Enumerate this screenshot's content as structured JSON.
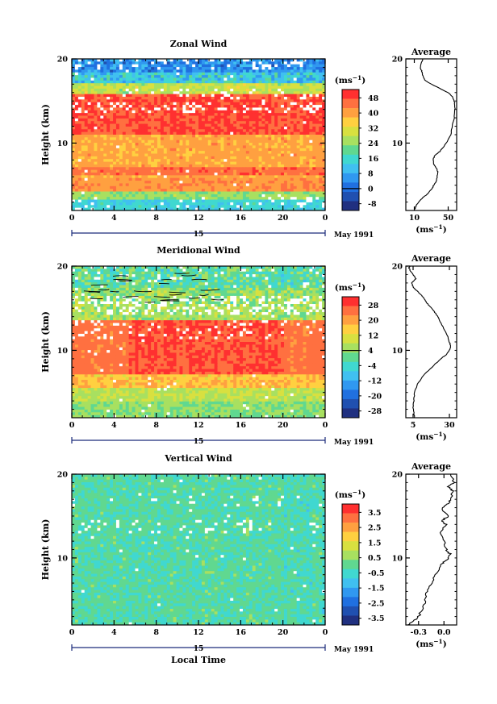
{
  "x_axis_label": "Local Time",
  "chart_data": [
    {
      "type": "heatmap",
      "title": "Zonal Wind",
      "ylabel": "Height (km)",
      "ylim": [
        2,
        20
      ],
      "y_ticks": [
        "10",
        "20"
      ],
      "x_ticks": [
        "0",
        "4",
        "8",
        "12",
        "16",
        "20",
        "0"
      ],
      "xlim": [
        0,
        24
      ],
      "day_label": "15",
      "date_label": "May 1991",
      "colorbar": {
        "unit_label": "(ms",
        "unit_exp": "−1",
        "tick_labels": [
          "48",
          "40",
          "32",
          "24",
          "16",
          "8",
          "0",
          "-8"
        ],
        "colors": [
          "#FF3030",
          "#FF7040",
          "#FFA040",
          "#FFD040",
          "#D8E040",
          "#A8E060",
          "#60D890",
          "#40D8D0",
          "#40C0F0",
          "#3098F0",
          "#2070E0",
          "#2050B0",
          "#203080"
        ]
      },
      "profile": {
        "title": "Average",
        "x_ticks": [
          "10",
          "50"
        ],
        "xlim": [
          0,
          60
        ],
        "ylim": [
          2,
          20
        ],
        "y_ticks": [
          "10",
          "20"
        ],
        "unit_label": "(ms",
        "unit_exp": "−1",
        "x": [
          10,
          12,
          15,
          20,
          26,
          30,
          33,
          36,
          37,
          38,
          36,
          33,
          32,
          34,
          40,
          48,
          53,
          55,
          57,
          58,
          58,
          57,
          55,
          50,
          40,
          30,
          22,
          20,
          19,
          17,
          20
        ],
        "y": [
          2,
          2.5,
          3,
          3.5,
          4,
          4.5,
          5,
          5.5,
          6,
          6.5,
          7,
          7.5,
          8,
          8.5,
          9,
          10,
          11,
          12,
          13,
          14,
          14.5,
          15,
          15.5,
          16,
          16.5,
          17,
          17.5,
          18,
          18.5,
          19,
          20
        ]
      }
    },
    {
      "type": "heatmap",
      "title": "Meridional Wind",
      "ylabel": "Height (km)",
      "ylim": [
        2,
        20
      ],
      "y_ticks": [
        "10",
        "20"
      ],
      "x_ticks": [
        "0",
        "4",
        "8",
        "12",
        "16",
        "20",
        "0"
      ],
      "xlim": [
        0,
        24
      ],
      "day_label": "15",
      "date_label": "May 1991",
      "colorbar": {
        "unit_label": "(ms",
        "unit_exp": "−1",
        "tick_labels": [
          "28",
          "20",
          "12",
          "4",
          "-4",
          "-12",
          "-20",
          "-28"
        ],
        "colors": [
          "#FF3030",
          "#FF7040",
          "#FFA040",
          "#FFD040",
          "#D8E040",
          "#A8E060",
          "#60D890",
          "#40D8D0",
          "#40C0F0",
          "#3098F0",
          "#2070E0",
          "#2050B0",
          "#203080"
        ]
      },
      "profile": {
        "title": "Average",
        "x_ticks": [
          "5",
          "30"
        ],
        "xlim": [
          0,
          35
        ],
        "ylim": [
          2,
          20
        ],
        "y_ticks": [
          "10",
          "20"
        ],
        "unit_label": "(ms",
        "unit_exp": "−1",
        "x": [
          6,
          5,
          5.5,
          6,
          8,
          12,
          18,
          24,
          28,
          30,
          31,
          30,
          28,
          25,
          22,
          20,
          18,
          15,
          13,
          11,
          8,
          5,
          4,
          7,
          5,
          3,
          2,
          3
        ],
        "y": [
          2,
          3,
          4,
          5,
          6,
          7,
          8,
          9,
          9.5,
          10,
          10.5,
          11,
          12,
          13,
          14,
          14.5,
          15,
          15.5,
          16,
          16.5,
          17,
          17.5,
          18,
          18.5,
          19,
          19.5,
          19.8,
          20
        ]
      }
    },
    {
      "type": "heatmap",
      "title": "Vertical Wind",
      "ylabel": "Height (km)",
      "ylim": [
        2,
        20
      ],
      "y_ticks": [
        "10",
        "20"
      ],
      "x_ticks": [
        "0",
        "4",
        "8",
        "12",
        "16",
        "20",
        "0"
      ],
      "xlim": [
        0,
        24
      ],
      "day_label": "15",
      "date_label": "May 1991",
      "colorbar": {
        "unit_label": "(ms",
        "unit_exp": "−1",
        "tick_labels": [
          "3.5",
          "2.5",
          "1.5",
          "0.5",
          "-0.5",
          "-1.5",
          "-2.5",
          "-3.5"
        ],
        "colors": [
          "#FF3030",
          "#FF7040",
          "#FFA040",
          "#FFD040",
          "#D8E040",
          "#A8E060",
          "#60D890",
          "#40D8D0",
          "#40C0F0",
          "#3098F0",
          "#2070E0",
          "#2050B0",
          "#203080"
        ]
      },
      "profile": {
        "title": "Average",
        "x_ticks": [
          "-0.3",
          "0.0"
        ],
        "xlim": [
          -0.45,
          0.15
        ],
        "ylim": [
          2,
          20
        ],
        "y_ticks": [
          "10",
          "20"
        ],
        "unit_label": "(ms",
        "unit_exp": "−1",
        "x": [
          -0.42,
          -0.35,
          -0.3,
          -0.25,
          -0.22,
          -0.2,
          -0.15,
          -0.1,
          -0.05,
          0.0,
          0.05,
          0.07,
          0.03,
          0.0,
          -0.04,
          0.02,
          -0.02,
          0.05,
          -0.03,
          0.06,
          0.08,
          0.1,
          0.05,
          0.12,
          0.08
        ],
        "y": [
          2,
          2.5,
          3,
          4,
          5,
          6,
          7,
          8,
          9,
          9.5,
          10,
          10.5,
          11,
          12,
          13,
          14,
          14.5,
          15,
          16,
          16.5,
          17,
          18,
          18.5,
          19,
          20
        ]
      }
    }
  ]
}
